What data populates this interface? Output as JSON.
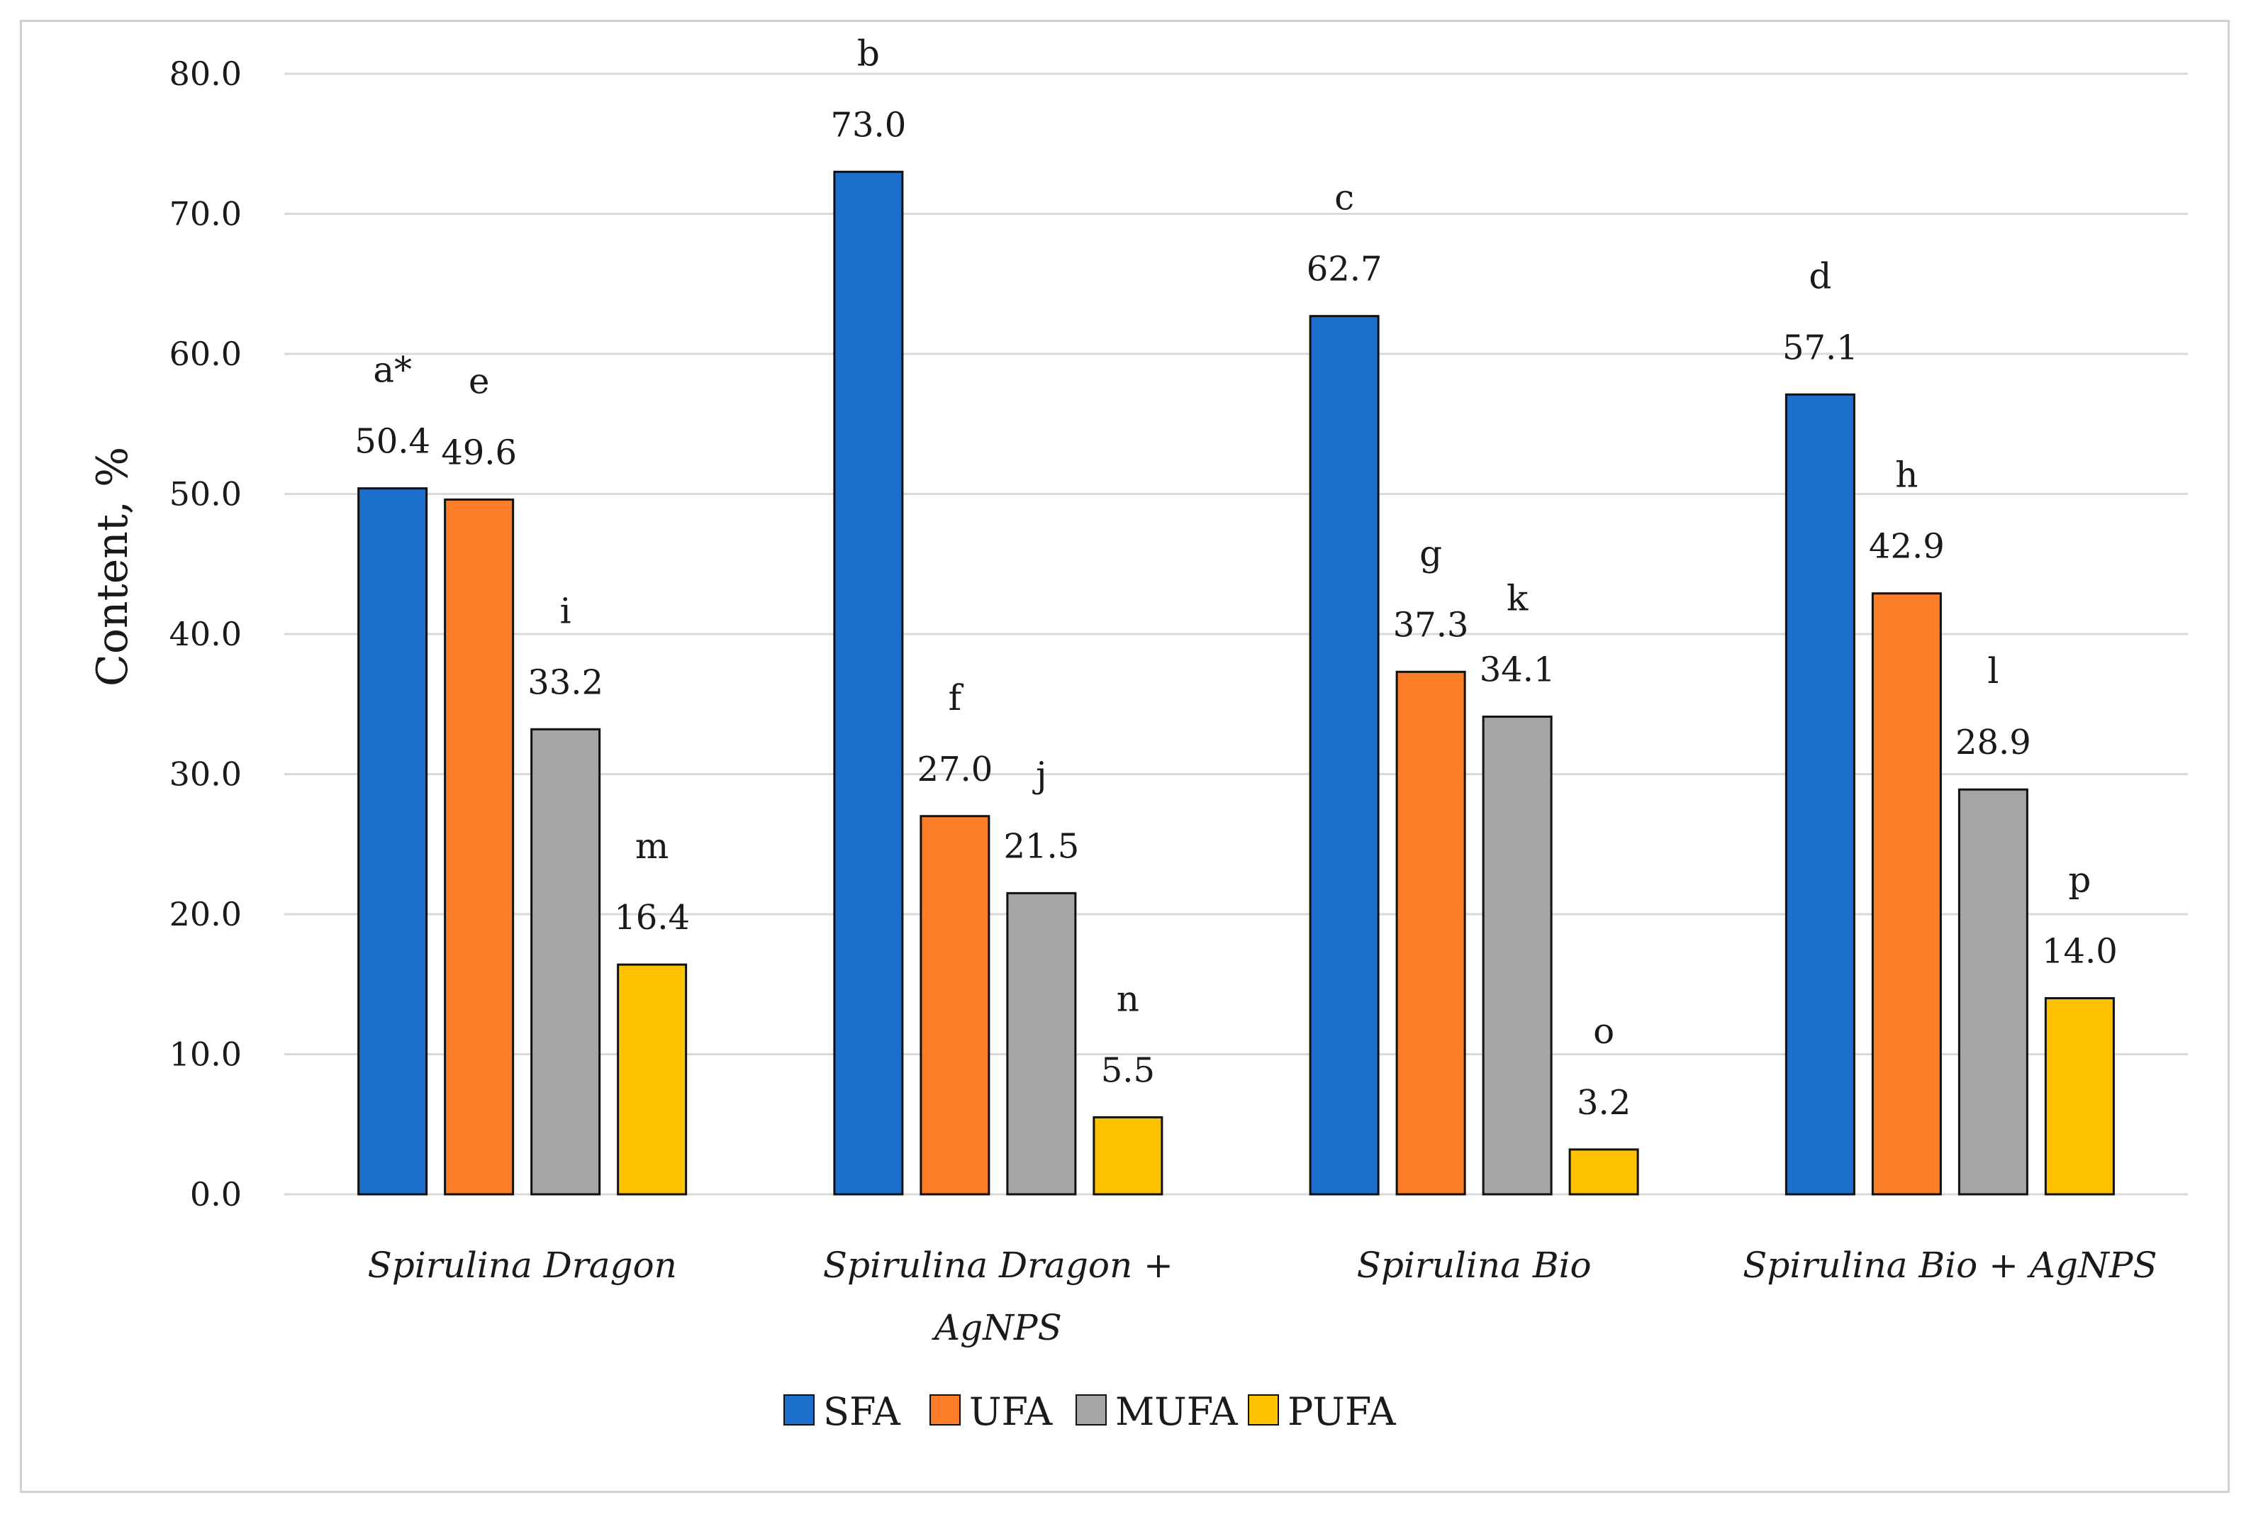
{
  "chart_data": {
    "type": "bar",
    "title": "",
    "xlabel": "",
    "ylabel": "Content, %",
    "ylim": [
      0,
      80
    ],
    "ytick_step": 10,
    "ytick_labels": [
      "0.0",
      "10.0",
      "20.0",
      "30.0",
      "40.0",
      "50.0",
      "60.0",
      "70.0",
      "80.0"
    ],
    "grid": true,
    "legend_position": "bottom",
    "categories": [
      [
        "Spirulina Dragon"
      ],
      [
        "Spirulina Dragon +",
        "AgNPS"
      ],
      [
        "Spirulina Bio"
      ],
      [
        "Spirulina Bio + AgNPS"
      ]
    ],
    "series": [
      {
        "name": "SFA",
        "color": "#1c6fcc",
        "values": [
          50.4,
          73.0,
          62.7,
          57.1
        ],
        "labels": [
          "50.4",
          "73.0",
          "62.7",
          "57.1"
        ],
        "letters": [
          "a*",
          "b",
          "c",
          "d"
        ]
      },
      {
        "name": "UFA",
        "color": "#fb7d28",
        "values": [
          49.6,
          27.0,
          37.3,
          42.9
        ],
        "labels": [
          "49.6",
          "27.0",
          "37.3",
          "42.9"
        ],
        "letters": [
          "e",
          "f",
          "g",
          "h"
        ]
      },
      {
        "name": "MUFA",
        "color": "#a5a5a5",
        "values": [
          33.2,
          21.5,
          34.1,
          28.9
        ],
        "labels": [
          "33.2",
          "21.5",
          "34.1",
          "28.9"
        ],
        "letters": [
          "i",
          "j",
          "k",
          "l"
        ]
      },
      {
        "name": "PUFA",
        "color": "#fec100",
        "values": [
          16.4,
          5.5,
          3.2,
          14.0
        ],
        "labels": [
          "16.4",
          "5.5",
          "3.2",
          "14.0"
        ],
        "letters": [
          "m",
          "n",
          "o",
          "p"
        ]
      }
    ]
  }
}
